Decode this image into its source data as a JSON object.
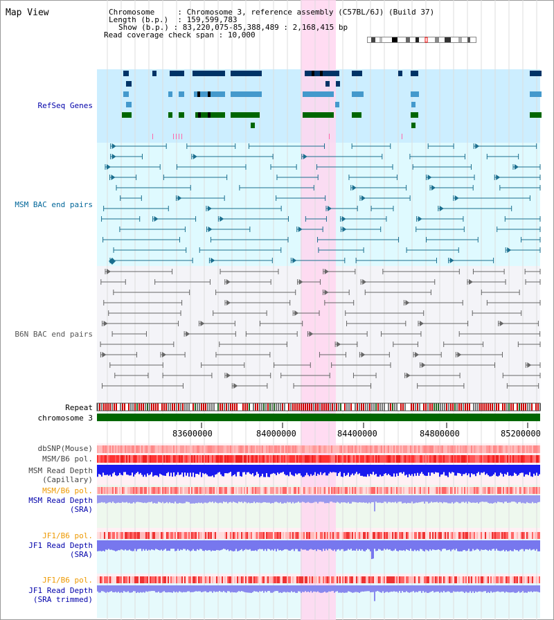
{
  "page": {
    "title": "Map View"
  },
  "header": {
    "rows": [
      {
        "label": "Chromosome",
        "sep": ":",
        "value": "Chromosome 3, reference assembly (C57BL/6J) (Build 37)"
      },
      {
        "label": "Length (b.p.)",
        "sep": ":",
        "value": "159,599,783"
      },
      {
        "label": "Show (b.p.)",
        "sep": ":",
        "value": "83,220,075-85,388,489 : 2,168,415 bp"
      },
      {
        "label": "Read coverage check span",
        "sep": ":",
        "value": "10,000"
      }
    ]
  },
  "tracks": {
    "refseq": {
      "label": "RefSeq Genes",
      "color": "#0000aa"
    },
    "msm_bac": {
      "label": "MSM BAC end pairs",
      "color": "#006699"
    },
    "b6n_bac": {
      "label": "B6N BAC end pairs",
      "color": "#555555"
    },
    "repeat": {
      "label": "Repeat"
    },
    "chromosome": {
      "label": "chromosome 3"
    },
    "dbsnp": {
      "label": "dbSNP(Mouse)"
    },
    "msm_b6_pol": {
      "label": "MSM/B6 pol."
    },
    "msm_depth_cap": {
      "label1": "MSM Read Depth",
      "label2": "(Capillary)"
    },
    "msm_b6_pol2": {
      "label": "MSM/B6 pol.",
      "color": "#ee9900"
    },
    "msm_depth_sra": {
      "label1": "MSM Read Depth",
      "label2": "(SRA)",
      "color": "#0000aa"
    },
    "jf1_b6_pol": {
      "label": "JF1/B6 pol.",
      "color": "#ee9900"
    },
    "jf1_depth_sra": {
      "label1": "JF1 Read Depth",
      "label2": "(SRA)",
      "color": "#0000aa"
    },
    "jf1_b6_pol2": {
      "label": "JF1/B6 pol.",
      "color": "#ee9900"
    },
    "jf1_depth_trim": {
      "label1": "JF1 Read Depth",
      "label2": "(SRA trimmed)",
      "color": "#0000aa"
    }
  },
  "axis": {
    "ticks": [
      "83600000",
      "84000000",
      "84400000",
      "84800000",
      "85200000"
    ]
  },
  "colors": {
    "highlight": "#ffd6f0",
    "refseq_bg": "#cceeff",
    "msm_bg": "#dffaff",
    "b6n_bg": "#f4f4f8",
    "chromosome": "#006600"
  }
}
